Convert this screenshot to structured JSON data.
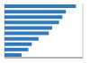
{
  "chart_data": {
    "type": "bar",
    "orientation": "horizontal",
    "categories": [
      null,
      null,
      null,
      null,
      null,
      null,
      null,
      null,
      null,
      null
    ],
    "values": [
      21,
      18,
      17,
      16,
      14,
      13,
      10,
      8,
      7,
      5
    ],
    "color": "#2f7abf",
    "xlim": [
      0,
      23
    ],
    "xticks": [
      7,
      14,
      21
    ],
    "grid": true,
    "tick_labels": false
  }
}
